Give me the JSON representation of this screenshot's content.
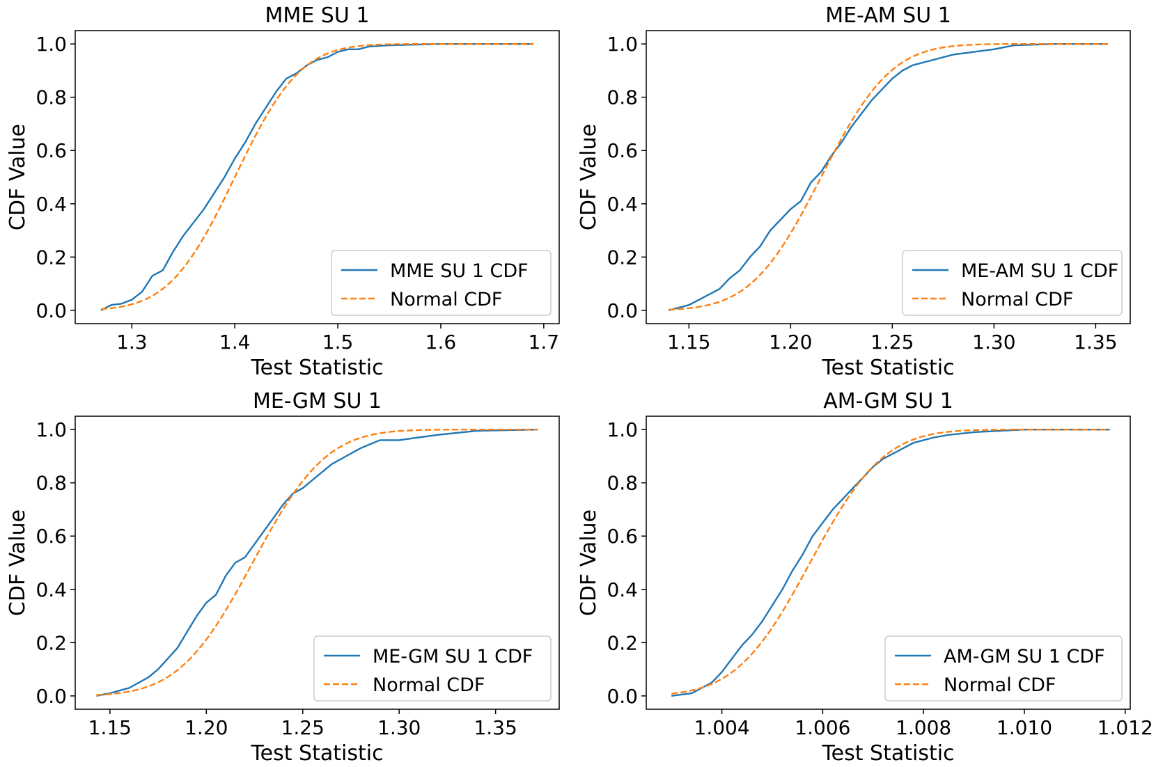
{
  "colors": {
    "empirical": "#1f77b4",
    "normal": "#ff7f0e",
    "axes": "#000000",
    "legend_border": "#cccccc"
  },
  "chart_data": [
    {
      "type": "line",
      "title": "MME SU 1",
      "xlabel": "Test Statistic",
      "ylabel": "CDF Value",
      "xlim": [
        1.245,
        1.715
      ],
      "ylim": [
        -0.05,
        1.05
      ],
      "xticks": [
        1.3,
        1.4,
        1.5,
        1.6,
        1.7
      ],
      "xtick_labels": [
        "1.3",
        "1.4",
        "1.5",
        "1.6",
        "1.7"
      ],
      "yticks": [
        0.0,
        0.2,
        0.4,
        0.6,
        0.8,
        1.0
      ],
      "ytick_labels": [
        "0.0",
        "0.2",
        "0.4",
        "0.6",
        "0.8",
        "1.0"
      ],
      "legend": {
        "position": "lower right",
        "entries": [
          "MME SU 1 CDF",
          "Normal CDF"
        ]
      },
      "series": [
        {
          "name": "MME SU 1 CDF",
          "style": "solid",
          "x": [
            1.27,
            1.28,
            1.29,
            1.3,
            1.31,
            1.32,
            1.33,
            1.34,
            1.35,
            1.36,
            1.37,
            1.38,
            1.39,
            1.4,
            1.41,
            1.42,
            1.43,
            1.44,
            1.45,
            1.46,
            1.47,
            1.48,
            1.49,
            1.5,
            1.51,
            1.52,
            1.53,
            1.55,
            1.58,
            1.6,
            1.65,
            1.69
          ],
          "y": [
            0.0,
            0.02,
            0.025,
            0.04,
            0.07,
            0.13,
            0.15,
            0.22,
            0.28,
            0.33,
            0.38,
            0.44,
            0.5,
            0.57,
            0.63,
            0.7,
            0.76,
            0.82,
            0.87,
            0.89,
            0.92,
            0.94,
            0.95,
            0.97,
            0.98,
            0.98,
            0.99,
            0.995,
            0.998,
            1.0,
            1.0,
            1.0
          ]
        },
        {
          "name": "Normal CDF",
          "style": "dashed",
          "mean": 1.4,
          "sd": 0.05,
          "x_range": [
            1.27,
            1.69
          ]
        }
      ]
    },
    {
      "type": "line",
      "title": "ME-AM SU 1",
      "xlabel": "Test Statistic",
      "ylabel": "CDF Value",
      "xlim": [
        1.129,
        1.367
      ],
      "ylim": [
        -0.05,
        1.05
      ],
      "xticks": [
        1.15,
        1.2,
        1.25,
        1.3,
        1.35
      ],
      "xtick_labels": [
        "1.15",
        "1.20",
        "1.25",
        "1.30",
        "1.35"
      ],
      "yticks": [
        0.0,
        0.2,
        0.4,
        0.6,
        0.8,
        1.0
      ],
      "ytick_labels": [
        "0.0",
        "0.2",
        "0.4",
        "0.6",
        "0.8",
        "1.0"
      ],
      "legend": {
        "position": "lower right",
        "entries": [
          "ME-AM SU 1 CDF",
          "Normal CDF"
        ]
      },
      "series": [
        {
          "name": "ME-AM SU 1 CDF",
          "style": "solid",
          "x": [
            1.14,
            1.145,
            1.15,
            1.155,
            1.16,
            1.165,
            1.17,
            1.175,
            1.18,
            1.185,
            1.19,
            1.195,
            1.2,
            1.205,
            1.21,
            1.215,
            1.22,
            1.225,
            1.23,
            1.235,
            1.24,
            1.245,
            1.25,
            1.255,
            1.26,
            1.265,
            1.27,
            1.275,
            1.28,
            1.29,
            1.3,
            1.31,
            1.33,
            1.356
          ],
          "y": [
            0.0,
            0.01,
            0.02,
            0.04,
            0.06,
            0.08,
            0.12,
            0.15,
            0.2,
            0.24,
            0.3,
            0.34,
            0.38,
            0.41,
            0.48,
            0.52,
            0.58,
            0.63,
            0.69,
            0.74,
            0.79,
            0.83,
            0.87,
            0.9,
            0.92,
            0.93,
            0.94,
            0.95,
            0.96,
            0.97,
            0.98,
            0.995,
            1.0,
            1.0
          ]
        },
        {
          "name": "Normal CDF",
          "style": "dashed",
          "mean": 1.215,
          "sd": 0.027,
          "x_range": [
            1.14,
            1.356
          ]
        }
      ]
    },
    {
      "type": "line",
      "title": "ME-GM SU 1",
      "xlabel": "Test Statistic",
      "ylabel": "CDF Value",
      "xlim": [
        1.132,
        1.383
      ],
      "ylim": [
        -0.05,
        1.05
      ],
      "xticks": [
        1.15,
        1.2,
        1.25,
        1.3,
        1.35
      ],
      "xtick_labels": [
        "1.15",
        "1.20",
        "1.25",
        "1.30",
        "1.35"
      ],
      "yticks": [
        0.0,
        0.2,
        0.4,
        0.6,
        0.8,
        1.0
      ],
      "ytick_labels": [
        "0.0",
        "0.2",
        "0.4",
        "0.6",
        "0.8",
        "1.0"
      ],
      "legend": {
        "position": "lower right",
        "entries": [
          "ME-GM SU 1 CDF",
          "Normal CDF"
        ]
      },
      "series": [
        {
          "name": "ME-GM SU 1 CDF",
          "style": "solid",
          "x": [
            1.143,
            1.15,
            1.155,
            1.16,
            1.165,
            1.17,
            1.175,
            1.18,
            1.185,
            1.19,
            1.195,
            1.2,
            1.205,
            1.21,
            1.215,
            1.22,
            1.225,
            1.23,
            1.235,
            1.24,
            1.245,
            1.25,
            1.255,
            1.26,
            1.265,
            1.27,
            1.28,
            1.29,
            1.3,
            1.31,
            1.32,
            1.34,
            1.372
          ],
          "y": [
            0.0,
            0.01,
            0.02,
            0.03,
            0.05,
            0.07,
            0.1,
            0.14,
            0.18,
            0.24,
            0.3,
            0.35,
            0.38,
            0.45,
            0.5,
            0.52,
            0.57,
            0.62,
            0.67,
            0.72,
            0.76,
            0.78,
            0.81,
            0.84,
            0.87,
            0.89,
            0.93,
            0.96,
            0.96,
            0.97,
            0.98,
            0.995,
            1.0
          ]
        },
        {
          "name": "Normal CDF",
          "style": "dashed",
          "mean": 1.224,
          "sd": 0.03,
          "x_range": [
            1.143,
            1.372
          ]
        }
      ]
    },
    {
      "type": "line",
      "title": "AM-GM SU 1",
      "xlabel": "Test Statistic",
      "ylabel": "CDF Value",
      "xlim": [
        1.0025,
        1.0121
      ],
      "ylim": [
        -0.05,
        1.05
      ],
      "xticks": [
        1.004,
        1.006,
        1.008,
        1.01,
        1.012
      ],
      "xtick_labels": [
        "1.004",
        "1.006",
        "1.008",
        "1.010",
        "1.012"
      ],
      "yticks": [
        0.0,
        0.2,
        0.4,
        0.6,
        0.8,
        1.0
      ],
      "ytick_labels": [
        "0.0",
        "0.2",
        "0.4",
        "0.6",
        "0.8",
        "1.0"
      ],
      "legend": {
        "position": "lower right",
        "entries": [
          "AM-GM SU 1 CDF",
          "Normal CDF"
        ]
      },
      "series": [
        {
          "name": "AM-GM SU 1 CDF",
          "style": "solid",
          "x": [
            1.003,
            1.0032,
            1.0034,
            1.0036,
            1.0038,
            1.004,
            1.0042,
            1.0044,
            1.0046,
            1.0048,
            1.005,
            1.0052,
            1.0054,
            1.0056,
            1.0058,
            1.006,
            1.0062,
            1.0064,
            1.0066,
            1.0068,
            1.007,
            1.0072,
            1.0074,
            1.0076,
            1.0078,
            1.008,
            1.0082,
            1.0085,
            1.009,
            1.0095,
            1.01,
            1.011,
            1.0117
          ],
          "y": [
            0.0,
            0.005,
            0.01,
            0.03,
            0.05,
            0.09,
            0.14,
            0.19,
            0.23,
            0.28,
            0.34,
            0.4,
            0.47,
            0.53,
            0.6,
            0.65,
            0.7,
            0.74,
            0.78,
            0.82,
            0.86,
            0.89,
            0.91,
            0.93,
            0.95,
            0.96,
            0.97,
            0.98,
            0.99,
            0.995,
            1.0,
            1.0,
            1.0
          ]
        },
        {
          "name": "Normal CDF",
          "style": "dashed",
          "mean": 1.00575,
          "sd": 0.00115,
          "x_range": [
            1.003,
            1.0117
          ]
        }
      ]
    }
  ]
}
